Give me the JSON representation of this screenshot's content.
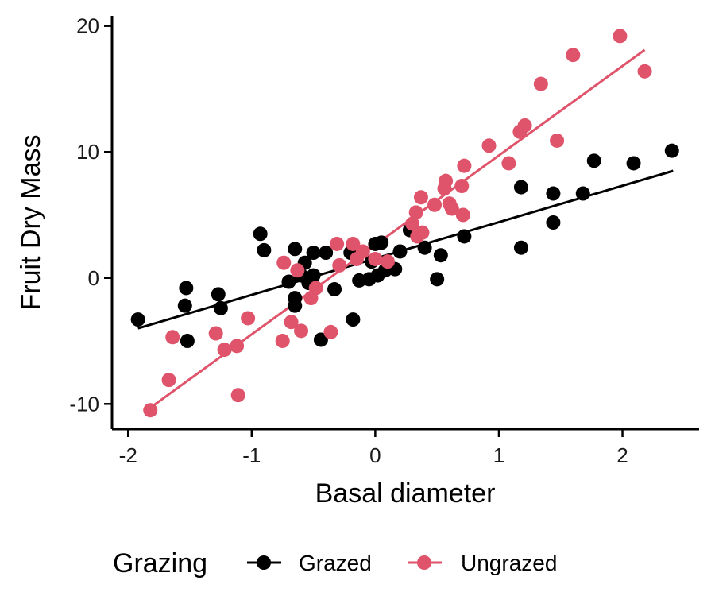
{
  "chart_data": {
    "type": "scatter",
    "xlabel": "Basal diameter",
    "ylabel": "Fruit Dry Mass",
    "xlim": [
      -2.13,
      2.62
    ],
    "ylim": [
      -12.0,
      20.8
    ],
    "xticks": [
      -2,
      -1,
      0,
      1,
      2
    ],
    "yticks": [
      -10,
      0,
      10,
      20
    ],
    "xtick_labels": [
      "-2",
      "-1",
      "0",
      "1",
      "2"
    ],
    "ytick_labels": [
      "-10",
      "0",
      "10",
      "20"
    ],
    "grid": false,
    "legend": {
      "title": "Grazing",
      "position": "bottom"
    },
    "series": [
      {
        "name": "Grazed",
        "color": "#000000",
        "fit": {
          "x": [
            -1.92,
            2.41
          ],
          "y": [
            -4.0,
            8.5
          ]
        },
        "points": [
          [
            -1.92,
            -3.3
          ],
          [
            -1.53,
            -0.8
          ],
          [
            -1.54,
            -2.2
          ],
          [
            -1.52,
            -5.0
          ],
          [
            -1.27,
            -1.3
          ],
          [
            -1.25,
            -2.4
          ],
          [
            -0.93,
            3.5
          ],
          [
            -0.9,
            2.2
          ],
          [
            -0.7,
            -0.3
          ],
          [
            -0.65,
            2.3
          ],
          [
            -0.65,
            -1.6
          ],
          [
            -0.65,
            -2.2
          ],
          [
            -0.6,
            0.2
          ],
          [
            -0.57,
            1.2
          ],
          [
            -0.54,
            -0.4
          ],
          [
            -0.5,
            0.2
          ],
          [
            -0.5,
            2.0
          ],
          [
            -0.44,
            -4.9
          ],
          [
            -0.4,
            2.0
          ],
          [
            -0.33,
            -0.9
          ],
          [
            -0.2,
            2.0
          ],
          [
            -0.18,
            -3.3
          ],
          [
            -0.13,
            -0.2
          ],
          [
            -0.05,
            -0.1
          ],
          [
            -0.03,
            1.3
          ],
          [
            0.0,
            2.7
          ],
          [
            0.02,
            0.2
          ],
          [
            0.05,
            2.8
          ],
          [
            0.08,
            0.6
          ],
          [
            0.16,
            0.7
          ],
          [
            0.2,
            2.1
          ],
          [
            0.28,
            3.8
          ],
          [
            0.4,
            2.4
          ],
          [
            0.5,
            -0.1
          ],
          [
            0.53,
            1.8
          ],
          [
            0.72,
            3.3
          ],
          [
            1.18,
            7.2
          ],
          [
            1.18,
            2.4
          ],
          [
            1.44,
            6.7
          ],
          [
            1.44,
            4.4
          ],
          [
            1.68,
            6.7
          ],
          [
            1.77,
            9.3
          ],
          [
            2.09,
            9.1
          ],
          [
            2.4,
            10.1
          ]
        ]
      },
      {
        "name": "Ungrazed",
        "color": "#DF536B",
        "fit": {
          "x": [
            -1.82,
            2.18
          ],
          "y": [
            -10.3,
            18.1
          ]
        },
        "points": [
          [
            -1.82,
            -10.5
          ],
          [
            -1.67,
            -8.1
          ],
          [
            -1.64,
            -4.7
          ],
          [
            -1.29,
            -4.4
          ],
          [
            -1.22,
            -5.7
          ],
          [
            -1.12,
            -5.4
          ],
          [
            -1.11,
            -9.3
          ],
          [
            -1.03,
            -3.2
          ],
          [
            -0.75,
            -5.0
          ],
          [
            -0.74,
            1.2
          ],
          [
            -0.68,
            -3.5
          ],
          [
            -0.63,
            0.6
          ],
          [
            -0.6,
            -4.2
          ],
          [
            -0.52,
            -1.6
          ],
          [
            -0.48,
            -0.8
          ],
          [
            -0.36,
            -4.3
          ],
          [
            -0.31,
            2.7
          ],
          [
            -0.29,
            1.0
          ],
          [
            -0.18,
            2.7
          ],
          [
            -0.15,
            1.5
          ],
          [
            -0.1,
            2.1
          ],
          [
            0.0,
            1.5
          ],
          [
            0.1,
            1.3
          ],
          [
            0.3,
            4.3
          ],
          [
            0.33,
            5.2
          ],
          [
            0.34,
            3.3
          ],
          [
            0.38,
            3.6
          ],
          [
            0.37,
            6.4
          ],
          [
            0.48,
            5.8
          ],
          [
            0.56,
            7.1
          ],
          [
            0.57,
            7.7
          ],
          [
            0.6,
            5.9
          ],
          [
            0.62,
            5.5
          ],
          [
            0.7,
            7.3
          ],
          [
            0.71,
            5.0
          ],
          [
            0.72,
            8.9
          ],
          [
            0.92,
            10.5
          ],
          [
            1.08,
            9.1
          ],
          [
            1.17,
            11.6
          ],
          [
            1.21,
            12.1
          ],
          [
            1.34,
            15.4
          ],
          [
            1.47,
            10.9
          ],
          [
            1.6,
            17.7
          ],
          [
            1.98,
            19.2
          ],
          [
            2.18,
            16.4
          ]
        ]
      }
    ]
  }
}
